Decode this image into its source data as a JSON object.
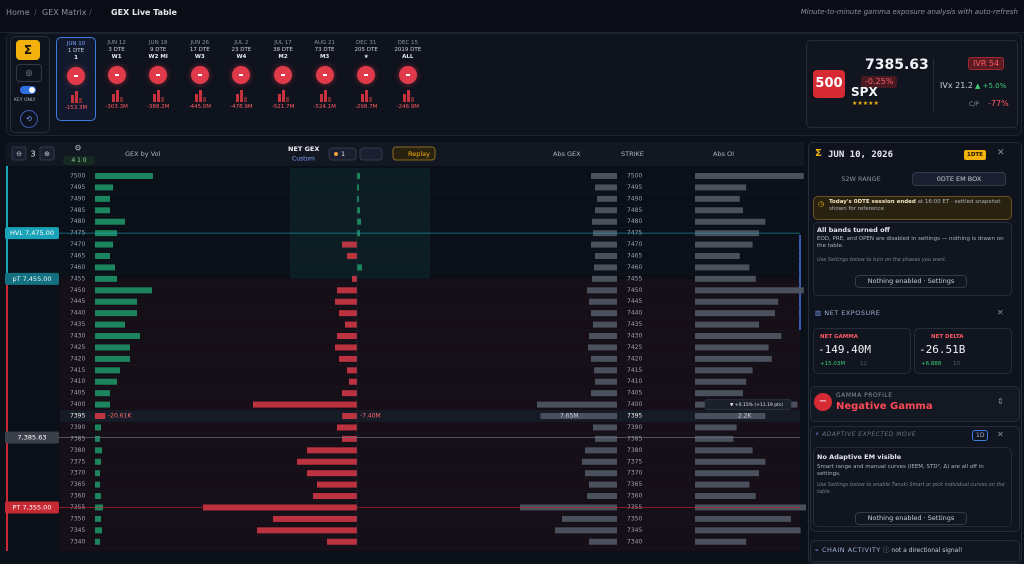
{
  "breadcrumb": [
    "Home",
    "GEX Matrix",
    "GEX Live Table"
  ],
  "tagline": "Minute-to-minute gamma exposure analysis with auto-refresh",
  "controls": {
    "key_only": "KEY ONLY"
  },
  "expiries": [
    {
      "date": "JUN 10",
      "dte": "1 DTE",
      "tag": "1",
      "value": "-153.3M"
    },
    {
      "date": "JUN 12",
      "dte": "3 DTE",
      "tag": "W1",
      "value": "-303.3M"
    },
    {
      "date": "JUN 18",
      "dte": "9 DTE",
      "tag": "W2  MI",
      "value": "-388.2M"
    },
    {
      "date": "JUN 26",
      "dte": "17 DTE",
      "tag": "W3",
      "value": "-445.0M"
    },
    {
      "date": "JUL 2",
      "dte": "23 DTE",
      "tag": "W4",
      "value": "-478.9M"
    },
    {
      "date": "JUL 17",
      "dte": "38 DTE",
      "tag": "M2",
      "value": "-521.7M"
    },
    {
      "date": "AUG 21",
      "dte": "73 DTE",
      "tag": "M3",
      "value": "-524.1M"
    },
    {
      "date": "DEC 31",
      "dte": "205 DTE",
      "tag": "★",
      "value": "-298.7M"
    },
    {
      "date": "DEC 15",
      "dte": "2019 DTE",
      "tag": "ALL",
      "value": "-248.9M"
    }
  ],
  "ticker": {
    "badge": "500",
    "price": "7385.63",
    "change": "-0.25%",
    "symbol": "SPX",
    "stars": "★★★★★",
    "ivr": "IVR 54",
    "ivx": "IVx 21.2",
    "ivx_change": "▲ +5.0%",
    "cp_label": "C/P",
    "cp_value": "-77%"
  },
  "table": {
    "zoom": "3",
    "counts": "4 1 0",
    "headers": {
      "gex_vol": "GEX by Vol",
      "net_gex": "NET GEX",
      "net_gex_sub": "Custom",
      "frame": "1",
      "replay": "Replay",
      "abs_gex": "Abs GEX",
      "strike": "STRIKE",
      "abs_oi": "Abs OI"
    },
    "levels": [
      {
        "label": "HVL 7,475.00",
        "value": 7475,
        "kind": "hvl"
      },
      {
        "label": "pT 7,455.00",
        "value": 7455,
        "kind": "pt"
      },
      {
        "label": "7,385.63",
        "value": 7385.63,
        "kind": "spot"
      },
      {
        "label": "PT 7,355.00",
        "value": 7355,
        "kind": "put"
      }
    ],
    "tooltip": "▼ +0.15% (+11.19 pts)",
    "rows": [
      {
        "strike": 7500,
        "gex_vol": 116,
        "net_gex": 1.5,
        "abs_gex": 2.6,
        "abs_oi": 3.4
      },
      {
        "strike": 7495,
        "gex_vol": 36,
        "net_gex": 1,
        "abs_gex": 2.2,
        "abs_oi": 1.6
      },
      {
        "strike": 7490,
        "gex_vol": 30,
        "net_gex": 1,
        "abs_gex": 2.0,
        "abs_oi": 1.4
      },
      {
        "strike": 7485,
        "gex_vol": 30,
        "net_gex": 1.5,
        "abs_gex": 2.2,
        "abs_oi": 1.5
      },
      {
        "strike": 7480,
        "gex_vol": 60,
        "net_gex": 2,
        "abs_gex": 2.5,
        "abs_oi": 2.2
      },
      {
        "strike": 7475,
        "gex_vol": 44,
        "net_gex": 1.5,
        "abs_gex": 2.4,
        "abs_oi": 2.0
      },
      {
        "strike": 7470,
        "gex_vol": 36,
        "net_gex": -7.5,
        "abs_gex": 2.6,
        "abs_oi": 1.8
      },
      {
        "strike": 7465,
        "gex_vol": 30,
        "net_gex": -5,
        "abs_gex": 2.2,
        "abs_oi": 1.4
      },
      {
        "strike": 7460,
        "gex_vol": 40,
        "net_gex": 2.5,
        "abs_gex": 2.3,
        "abs_oi": 1.7
      },
      {
        "strike": 7455,
        "gex_vol": 44,
        "net_gex": -2.5,
        "abs_gex": 2.5,
        "abs_oi": 1.9
      },
      {
        "strike": 7450,
        "gex_vol": 114,
        "net_gex": -10,
        "abs_gex": 3.0,
        "abs_oi": 3.4
      },
      {
        "strike": 7445,
        "gex_vol": 84,
        "net_gex": -11,
        "abs_gex": 2.8,
        "abs_oi": 2.6
      },
      {
        "strike": 7440,
        "gex_vol": 84,
        "net_gex": -9,
        "abs_gex": 2.6,
        "abs_oi": 2.5
      },
      {
        "strike": 7435,
        "gex_vol": 60,
        "net_gex": -6,
        "abs_gex": 2.4,
        "abs_oi": 2.0
      },
      {
        "strike": 7430,
        "gex_vol": 90,
        "net_gex": -10,
        "abs_gex": 2.8,
        "abs_oi": 2.7
      },
      {
        "strike": 7425,
        "gex_vol": 70,
        "net_gex": -11,
        "abs_gex": 2.9,
        "abs_oi": 2.3
      },
      {
        "strike": 7420,
        "gex_vol": 70,
        "net_gex": -9,
        "abs_gex": 2.6,
        "abs_oi": 2.4
      },
      {
        "strike": 7415,
        "gex_vol": 50,
        "net_gex": -5,
        "abs_gex": 2.3,
        "abs_oi": 1.8
      },
      {
        "strike": 7410,
        "gex_vol": 44,
        "net_gex": -4,
        "abs_gex": 2.2,
        "abs_oi": 1.6
      },
      {
        "strike": 7405,
        "gex_vol": 30,
        "net_gex": -7.5,
        "abs_gex": 2.6,
        "abs_oi": 1.5
      },
      {
        "strike": 7400,
        "gex_vol": 30,
        "net_gex": -52,
        "abs_gex": 8.0,
        "abs_oi": 3.2
      },
      {
        "strike": 7395,
        "gex_vol": -20.61,
        "net_gex": -7.4,
        "abs_gex": 7.65,
        "abs_oi": 2.2,
        "value_labels": {
          "gex_vol": "-20.61K",
          "net_gex": "-7.40M",
          "abs_gex": "7.65M",
          "abs_oi": "2.2K"
        }
      },
      {
        "strike": 7390,
        "gex_vol": 12,
        "net_gex": -10,
        "abs_gex": 2.4,
        "abs_oi": 1.3
      },
      {
        "strike": 7385,
        "gex_vol": 10,
        "net_gex": -7.5,
        "abs_gex": 2.2,
        "abs_oi": 1.2
      },
      {
        "strike": 7380,
        "gex_vol": 14,
        "net_gex": -25,
        "abs_gex": 3.2,
        "abs_oi": 1.8
      },
      {
        "strike": 7375,
        "gex_vol": 12,
        "net_gex": -30,
        "abs_gex": 3.5,
        "abs_oi": 2.2
      },
      {
        "strike": 7370,
        "gex_vol": 10,
        "net_gex": -25,
        "abs_gex": 3.2,
        "abs_oi": 2.0
      },
      {
        "strike": 7365,
        "gex_vol": 10,
        "net_gex": -20,
        "abs_gex": 2.8,
        "abs_oi": 1.7
      },
      {
        "strike": 7360,
        "gex_vol": 12,
        "net_gex": -22,
        "abs_gex": 3.0,
        "abs_oi": 1.9
      },
      {
        "strike": 7355,
        "gex_vol": 16,
        "net_gex": -77,
        "abs_gex": 9.7,
        "abs_oi": 3.9
      },
      {
        "strike": 7350,
        "gex_vol": 12,
        "net_gex": -42,
        "abs_gex": 5.5,
        "abs_oi": 3.0
      },
      {
        "strike": 7345,
        "gex_vol": 14,
        "net_gex": -50,
        "abs_gex": 6.2,
        "abs_oi": 3.3
      },
      {
        "strike": 7340,
        "gex_vol": 10,
        "net_gex": -15,
        "abs_gex": 2.8,
        "abs_oi": 1.6
      }
    ]
  },
  "panel": {
    "date": "JUN 10, 2026",
    "dte_badge": "1DTE",
    "tabs": [
      "52W RANGE",
      "0DTE EM BOX"
    ],
    "notice_bold": "Today's 0DTE session ended",
    "notice_rest": " at 16:00 ET · settled snapshot shown for reference",
    "bands_title": "All bands turned off",
    "bands_text": "EOD, PRE, and OPEN are disabled in settings — nothing is drawn on the table.",
    "bands_hint": "Use Settings below to turn on the phases you want.",
    "bands_button": "Nothing enabled · Settings",
    "net_exposure": "NET EXPOSURE",
    "net_gamma": {
      "label": "NET GAMMA",
      "value": "-149.40M",
      "change": "+15.03M",
      "count": "12"
    },
    "net_delta": {
      "label": "NET DELTA",
      "value": "-26.51B",
      "change": "+6.888",
      "count": "10"
    },
    "gamma_profile": "GAMMA PROFILE",
    "gamma_state": "Negative Gamma",
    "aem_title": "ADAPTIVE EXPECTED MOVE",
    "aem_badge": "1D",
    "aem_heading": "No Adaptive EM visible",
    "aem_text": "Smart range and manual curves (IEEM, STD², Δ) are all off in settings.",
    "aem_hint": "Use Settings below to enable Tanuki Smart or pick individual curves on the table.",
    "aem_button": "Nothing enabled · Settings",
    "chain_title": "CHAIN ACTIVITY",
    "chain_note": "not a directional signal!"
  }
}
